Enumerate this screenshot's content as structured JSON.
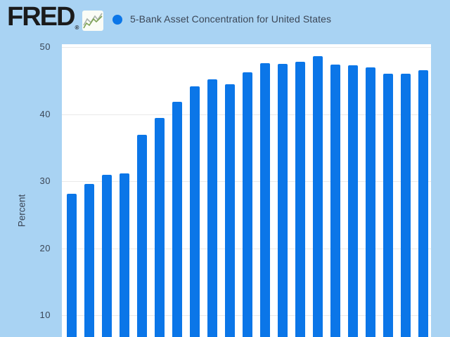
{
  "header": {
    "logo_text": "FRED",
    "registered_mark": "®",
    "logo_chart_icon": "line-chart-icon",
    "legend_marker": "blue-dot",
    "series_title": "5-Bank Asset Concentration for United States"
  },
  "y_axis": {
    "label": "Percent",
    "ticks": [
      50,
      40,
      30,
      20,
      10
    ]
  },
  "colors": {
    "page_background": "#a9d3f3",
    "plot_background": "#ffffff",
    "bar": "#0b76e8",
    "gridline": "#e9e9e9",
    "text": "#3b4656",
    "logo_text": "#1b1b1b",
    "icon_line_green": "#7da254",
    "icon_line_gray": "#aab3ab"
  },
  "chart_data": {
    "type": "bar",
    "title": "5-Bank Asset Concentration for United States",
    "ylabel": "Percent",
    "y_ticks": [
      10,
      20,
      30,
      40,
      50
    ],
    "y_visible_range": [
      6.8,
      50.4
    ],
    "x_axis_labels_visible": false,
    "grid": "horizontal",
    "legend_position": "top",
    "bar_color": "#0b76e8",
    "values": [
      28.1,
      29.6,
      30.9,
      31.1,
      36.9,
      39.4,
      41.8,
      44.1,
      45.2,
      44.4,
      46.2,
      47.6,
      47.5,
      47.8,
      48.6,
      47.4,
      47.3,
      47.0,
      46.0,
      46.0,
      46.5
    ]
  }
}
